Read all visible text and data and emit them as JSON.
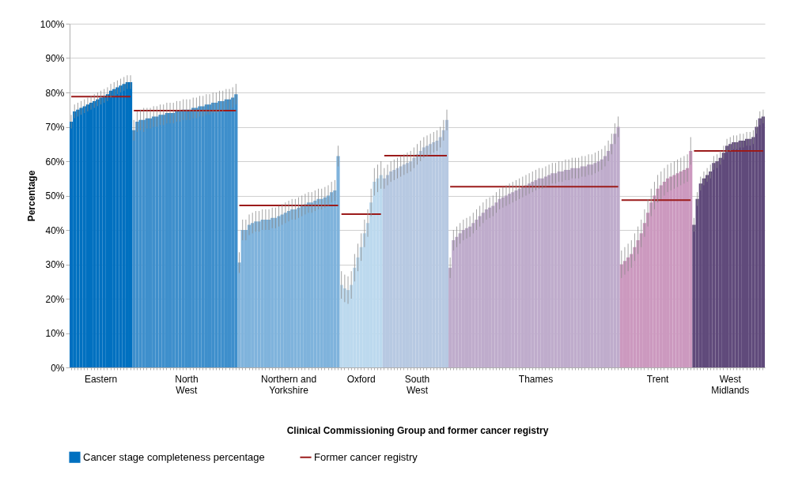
{
  "chart_data": {
    "type": "bar",
    "xlabel": "Clinical Commissioning  Group and former cancer registry",
    "ylabel": "Percentage",
    "categories": [
      null,
      null,
      null,
      null,
      null,
      null,
      null,
      null,
      null,
      "Eastern",
      null,
      null,
      null,
      null,
      null,
      null,
      null,
      null,
      null,
      null,
      null,
      null,
      null,
      null,
      null,
      null,
      null,
      null,
      null,
      null,
      null,
      null,
      null,
      null,
      null,
      "North West",
      null,
      null,
      null,
      null,
      null,
      null,
      null,
      null,
      null,
      null,
      null,
      null,
      null,
      null,
      null,
      null,
      null,
      null,
      null,
      null,
      null,
      null,
      null,
      null,
      null,
      null,
      null,
      null,
      null,
      null,
      "Northern and Yorkshire",
      null,
      null,
      null,
      null,
      null,
      null,
      null,
      null,
      null,
      null,
      null,
      null,
      null,
      null,
      null,
      null,
      null,
      null,
      null,
      null,
      null,
      "Oxford",
      null,
      null,
      null,
      null,
      null,
      null,
      null,
      null,
      null,
      null,
      null,
      null,
      null,
      null,
      null,
      null,
      "South West",
      null,
      null,
      null,
      null,
      null,
      null,
      null,
      null,
      null,
      null,
      null,
      null,
      null,
      null,
      null,
      null,
      null,
      null,
      null,
      null,
      null,
      null,
      null,
      null,
      null,
      null,
      null,
      null,
      null,
      null,
      null,
      null,
      null,
      null,
      null,
      "Thames",
      null,
      null,
      null,
      null,
      null,
      null,
      null,
      null,
      null,
      null,
      null,
      null,
      null,
      null,
      null,
      null,
      null,
      null,
      null,
      null,
      null,
      null,
      null,
      null,
      null,
      null,
      null,
      null,
      null,
      null,
      null,
      null,
      null,
      null,
      null,
      null,
      "Trent",
      null,
      null,
      null,
      null,
      null,
      null,
      null,
      null,
      null,
      null,
      null,
      null,
      null,
      null,
      null,
      null,
      null,
      null,
      null,
      null,
      null,
      "West Midlands",
      null,
      null,
      null,
      null,
      null,
      null,
      null,
      null,
      null,
      null
    ],
    "series": [
      {
        "name": "Cancer stage completeness percentage",
        "color": "#0070c0",
        "values": [
          71.5,
          74.5,
          75,
          75.5,
          76,
          76.5,
          77,
          77.5,
          78,
          78.5,
          79,
          79.5,
          80.5,
          81,
          81.5,
          82,
          82.5,
          83,
          83,
          69,
          71.5,
          72,
          72,
          72.5,
          72.5,
          73,
          73,
          73.5,
          73.5,
          74,
          74,
          74,
          74.5,
          74.5,
          75,
          75,
          75,
          75.5,
          75.5,
          76,
          76,
          76.5,
          76.5,
          77,
          77,
          77.5,
          77.5,
          78,
          78,
          78.5,
          79.5,
          30.5,
          40,
          40,
          41.5,
          42,
          42.5,
          42.5,
          43,
          43,
          43,
          43.5,
          43.5,
          44,
          44.5,
          45,
          45.5,
          46,
          46,
          46.5,
          47,
          47.5,
          48,
          48,
          48.5,
          49,
          49,
          49.5,
          50,
          51,
          51.5,
          61.5,
          24,
          23,
          22.5,
          24,
          29,
          32,
          35,
          39,
          42,
          48,
          54,
          55,
          56,
          55,
          56,
          57,
          57.5,
          58,
          58.5,
          59,
          59.5,
          60,
          61,
          62,
          63,
          64,
          64.5,
          65,
          65.5,
          66,
          67,
          69,
          72,
          29,
          37,
          38,
          39,
          40,
          40.5,
          41,
          42,
          43,
          44,
          45,
          46,
          46.5,
          47,
          48,
          49,
          49.5,
          50,
          50.5,
          51,
          51.5,
          52,
          52.5,
          53,
          53.5,
          54,
          54.5,
          55,
          55,
          55.5,
          56,
          56.5,
          56.5,
          57,
          57,
          57.5,
          57.5,
          58,
          58,
          58,
          58.5,
          58.5,
          59,
          59,
          59.5,
          60,
          60.5,
          61.5,
          63,
          65,
          68,
          70,
          30,
          31,
          32,
          33,
          35,
          37,
          39,
          42,
          45,
          48,
          50,
          52,
          53,
          54,
          55,
          55.5,
          56,
          56.5,
          57,
          57.5,
          58,
          63,
          41.5,
          49,
          53.5,
          55,
          56,
          57,
          59.5,
          60,
          61,
          62.5,
          64.5,
          65,
          65.5,
          65.5,
          66,
          66,
          66.5,
          66.5,
          67,
          70,
          72.5,
          73
        ],
        "errors": [
          2,
          2,
          2,
          2,
          2,
          2,
          2,
          2,
          2,
          2,
          2,
          2,
          2,
          2,
          2,
          2,
          2,
          2,
          2,
          3,
          3,
          3,
          3.5,
          3,
          3,
          3,
          3,
          3,
          3,
          3,
          3,
          3,
          3,
          3,
          3,
          3,
          3,
          3,
          3,
          3,
          3,
          3,
          3,
          3,
          3,
          3,
          3,
          3,
          3,
          3,
          3,
          3,
          3,
          3,
          3,
          3,
          3,
          3,
          3,
          3,
          3,
          3,
          3,
          3,
          3,
          3,
          3,
          3,
          3,
          3,
          3,
          3,
          3,
          3,
          3,
          3,
          3,
          3,
          3,
          3,
          3,
          3,
          4,
          4,
          4,
          4,
          4,
          4,
          4,
          4,
          4,
          4,
          4,
          4,
          4,
          3,
          3,
          3,
          3,
          3,
          3,
          3,
          3,
          3,
          3,
          3,
          3,
          3,
          3,
          3,
          3,
          3,
          3,
          3,
          3,
          3,
          3,
          3,
          3,
          3,
          3,
          3,
          3,
          3,
          3,
          3,
          3,
          3,
          3,
          3,
          3,
          3,
          3,
          3,
          3,
          3,
          3,
          3,
          3,
          3,
          3,
          3,
          3,
          3,
          3,
          3,
          3,
          3,
          3,
          3,
          3,
          3,
          3,
          3,
          3,
          3,
          3,
          3,
          3,
          3,
          3,
          3,
          3,
          3,
          3,
          3,
          3,
          4,
          4,
          4,
          4,
          4,
          4,
          4,
          4,
          4,
          4,
          4,
          4,
          4,
          4,
          4,
          4,
          4,
          4,
          4,
          4,
          4,
          4,
          2,
          2,
          2,
          2,
          2,
          2,
          2,
          2,
          2,
          2,
          2,
          2,
          2,
          2,
          2,
          2,
          2,
          2,
          2,
          2,
          2,
          2
        ],
        "colors": [
          "#0070c0",
          "#0070c0",
          "#0070c0",
          "#0070c0",
          "#0070c0",
          "#0070c0",
          "#0070c0",
          "#0070c0",
          "#0070c0",
          "#0070c0",
          "#0070c0",
          "#0070c0",
          "#0070c0",
          "#0070c0",
          "#0070c0",
          "#0070c0",
          "#0070c0",
          "#0070c0",
          "#0070c0",
          "#3e8fcc",
          "#3e8fcc",
          "#3e8fcc",
          "#3e8fcc",
          "#3e8fcc",
          "#3e8fcc",
          "#3e8fcc",
          "#3e8fcc",
          "#3e8fcc",
          "#3e8fcc",
          "#3e8fcc",
          "#3e8fcc",
          "#3e8fcc",
          "#3e8fcc",
          "#3e8fcc",
          "#3e8fcc",
          "#3e8fcc",
          "#3e8fcc",
          "#3e8fcc",
          "#3e8fcc",
          "#3e8fcc",
          "#3e8fcc",
          "#3e8fcc",
          "#3e8fcc",
          "#3e8fcc",
          "#3e8fcc",
          "#3e8fcc",
          "#3e8fcc",
          "#3e8fcc",
          "#3e8fcc",
          "#3e8fcc",
          "#3e8fcc",
          "#7fb3dc",
          "#7fb3dc",
          "#7fb3dc",
          "#7fb3dc",
          "#7fb3dc",
          "#7fb3dc",
          "#7fb3dc",
          "#7fb3dc",
          "#7fb3dc",
          "#7fb3dc",
          "#7fb3dc",
          "#7fb3dc",
          "#7fb3dc",
          "#7fb3dc",
          "#7fb3dc",
          "#7fb3dc",
          "#7fb3dc",
          "#7fb3dc",
          "#7fb3dc",
          "#7fb3dc",
          "#7fb3dc",
          "#7fb3dc",
          "#7fb3dc",
          "#7fb3dc",
          "#7fb3dc",
          "#7fb3dc",
          "#7fb3dc",
          "#7fb3dc",
          "#7fb3dc",
          "#7fb3dc",
          "#7fb3dc",
          "#bcd9ee",
          "#bcd9ee",
          "#bcd9ee",
          "#bcd9ee",
          "#bcd9ee",
          "#bcd9ee",
          "#bcd9ee",
          "#bcd9ee",
          "#bcd9ee",
          "#bcd9ee",
          "#bcd9ee",
          "#bcd9ee",
          "#bcd9ee",
          "#b7c9e2",
          "#b7c9e2",
          "#b7c9e2",
          "#b7c9e2",
          "#b7c9e2",
          "#b7c9e2",
          "#b7c9e2",
          "#b7c9e2",
          "#b7c9e2",
          "#b7c9e2",
          "#b7c9e2",
          "#b7c9e2",
          "#b7c9e2",
          "#b7c9e2",
          "#b7c9e2",
          "#b7c9e2",
          "#b7c9e2",
          "#b7c9e2",
          "#b7c9e2",
          "#b7c9e2",
          "#bfaccc",
          "#bfaccc",
          "#bfaccc",
          "#bfaccc",
          "#bfaccc",
          "#bfaccc",
          "#bfaccc",
          "#bfaccc",
          "#bfaccc",
          "#bfaccc",
          "#bfaccc",
          "#bfaccc",
          "#bfaccc",
          "#bfaccc",
          "#bfaccc",
          "#bfaccc",
          "#bfaccc",
          "#bfaccc",
          "#bfaccc",
          "#bfaccc",
          "#bfaccc",
          "#bfaccc",
          "#bfaccc",
          "#bfaccc",
          "#bfaccc",
          "#bfaccc",
          "#bfaccc",
          "#bfaccc",
          "#bfaccc",
          "#bfaccc",
          "#bfaccc",
          "#bfaccc",
          "#bfaccc",
          "#bfaccc",
          "#bfaccc",
          "#bfaccc",
          "#bfaccc",
          "#bfaccc",
          "#bfaccc",
          "#bfaccc",
          "#bfaccc",
          "#bfaccc",
          "#bfaccc",
          "#bfaccc",
          "#bfaccc",
          "#bfaccc",
          "#bfaccc",
          "#bfaccc",
          "#bfaccc",
          "#bfaccc",
          "#bfaccc",
          "#bfaccc",
          "#cc99bf",
          "#cc99bf",
          "#cc99bf",
          "#cc99bf",
          "#cc99bf",
          "#cc99bf",
          "#cc99bf",
          "#cc99bf",
          "#cc99bf",
          "#cc99bf",
          "#cc99bf",
          "#cc99bf",
          "#cc99bf",
          "#cc99bf",
          "#cc99bf",
          "#cc99bf",
          "#cc99bf",
          "#cc99bf",
          "#cc99bf",
          "#cc99bf",
          "#cc99bf",
          "#cc99bf",
          "#604a7b",
          "#604a7b",
          "#604a7b",
          "#604a7b",
          "#604a7b",
          "#604a7b",
          "#604a7b",
          "#604a7b",
          "#604a7b",
          "#604a7b",
          "#604a7b",
          "#604a7b",
          "#604a7b",
          "#604a7b",
          "#604a7b",
          "#604a7b",
          "#604a7b",
          "#604a7b",
          "#604a7b",
          "#604a7b",
          "#604a7b",
          "#604a7b"
        ]
      },
      {
        "name": "Former cancer registry",
        "type": "line",
        "color": "#9b1b1b",
        "values": [
          78.8,
          78.8,
          78.8,
          78.8,
          78.8,
          78.8,
          78.8,
          78.8,
          78.8,
          78.8,
          78.8,
          78.8,
          78.8,
          78.8,
          78.8,
          78.8,
          78.8,
          78.8,
          78.8,
          74.7,
          74.7,
          74.7,
          74.7,
          74.7,
          74.7,
          74.7,
          74.7,
          74.7,
          74.7,
          74.7,
          74.7,
          74.7,
          74.7,
          74.7,
          74.7,
          74.7,
          74.7,
          74.7,
          74.7,
          74.7,
          74.7,
          74.7,
          74.7,
          74.7,
          74.7,
          74.7,
          74.7,
          74.7,
          74.7,
          74.7,
          74.7,
          47.1,
          47.1,
          47.1,
          47.1,
          47.1,
          47.1,
          47.1,
          47.1,
          47.1,
          47.1,
          47.1,
          47.1,
          47.1,
          47.1,
          47.1,
          47.1,
          47.1,
          47.1,
          47.1,
          47.1,
          47.1,
          47.1,
          47.1,
          47.1,
          47.1,
          47.1,
          47.1,
          47.1,
          47.1,
          47.1,
          47.1,
          44.6,
          44.6,
          44.6,
          44.6,
          44.6,
          44.6,
          44.6,
          44.6,
          44.6,
          44.6,
          44.6,
          44.6,
          44.6,
          61.6,
          61.6,
          61.6,
          61.6,
          61.6,
          61.6,
          61.6,
          61.6,
          61.6,
          61.6,
          61.6,
          61.6,
          61.6,
          61.6,
          61.6,
          61.6,
          61.6,
          61.6,
          61.6,
          61.6,
          52.6,
          52.6,
          52.6,
          52.6,
          52.6,
          52.6,
          52.6,
          52.6,
          52.6,
          52.6,
          52.6,
          52.6,
          52.6,
          52.6,
          52.6,
          52.6,
          52.6,
          52.6,
          52.6,
          52.6,
          52.6,
          52.6,
          52.6,
          52.6,
          52.6,
          52.6,
          52.6,
          52.6,
          52.6,
          52.6,
          52.6,
          52.6,
          52.6,
          52.6,
          52.6,
          52.6,
          52.6,
          52.6,
          52.6,
          52.6,
          52.6,
          52.6,
          52.6,
          52.6,
          52.6,
          52.6,
          52.6,
          52.6,
          52.6,
          52.6,
          52.6,
          52.6,
          48.7,
          48.7,
          48.7,
          48.7,
          48.7,
          48.7,
          48.7,
          48.7,
          48.7,
          48.7,
          48.7,
          48.7,
          48.7,
          48.7,
          48.7,
          48.7,
          48.7,
          48.7,
          48.7,
          48.7,
          48.7,
          48.7,
          63,
          63,
          63,
          63,
          63,
          63,
          63,
          63,
          63,
          63,
          63,
          63,
          63,
          63,
          63,
          63,
          63,
          63,
          63,
          63,
          63,
          63
        ]
      }
    ],
    "ylim": [
      0,
      100
    ],
    "yticks": [
      {
        "value": 0,
        "label": "0%"
      },
      {
        "value": 10,
        "label": "10%"
      },
      {
        "value": 20,
        "label": "20%"
      },
      {
        "value": 30,
        "label": "30%"
      },
      {
        "value": 40,
        "label": "40%"
      },
      {
        "value": 50,
        "label": "50%"
      },
      {
        "value": 60,
        "label": "60%"
      },
      {
        "value": 70,
        "label": "70%"
      },
      {
        "value": 80,
        "label": "80%"
      },
      {
        "value": 90,
        "label": "90%"
      },
      {
        "value": 100,
        "label": "100%"
      }
    ],
    "grid": "y",
    "legend": "bottom",
    "line_style": "solid"
  }
}
